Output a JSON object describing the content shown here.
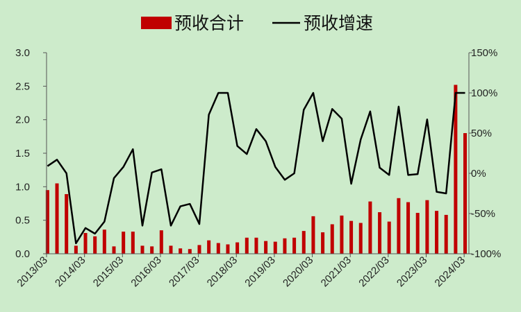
{
  "chart_data": {
    "type": "bar+line",
    "legend": {
      "placement": "top-center",
      "bar_label": "预收合计",
      "line_label": "预收增速"
    },
    "x_tick_labels": [
      "2013/03",
      "2014/03",
      "2015/03",
      "2016/03",
      "2017/03",
      "2018/03",
      "2019/03",
      "2020/03",
      "2021/03",
      "2022/03",
      "2023/03",
      "2024/03"
    ],
    "y_left": {
      "ylim": [
        0,
        3.0
      ],
      "tick_labels": [
        "0.0",
        "0.5",
        "1.0",
        "1.5",
        "2.0",
        "2.5",
        "3.0"
      ]
    },
    "y_right": {
      "ylim": [
        -100,
        150
      ],
      "tick_labels": [
        "-100%",
        "-50%",
        "0%",
        "50%",
        "100%",
        "150%"
      ]
    },
    "grid": false,
    "colors": {
      "bar": "#C00000",
      "line": "#000000",
      "background": "#CDEBCB"
    },
    "series": [
      {
        "name": "预收合计",
        "type": "bar",
        "axis": "left",
        "values": [
          0.95,
          1.05,
          0.89,
          0.12,
          0.31,
          0.26,
          0.36,
          0.11,
          0.33,
          0.33,
          0.12,
          0.11,
          0.35,
          0.12,
          0.08,
          0.07,
          0.13,
          0.2,
          0.16,
          0.14,
          0.17,
          0.24,
          0.24,
          0.19,
          0.18,
          0.23,
          0.24,
          0.34,
          0.56,
          0.32,
          0.44,
          0.57,
          0.49,
          0.46,
          0.78,
          0.62,
          0.48,
          0.83,
          0.77,
          0.61,
          0.8,
          0.64,
          0.58,
          2.52,
          1.8
        ]
      },
      {
        "name": "预收增速",
        "type": "line",
        "axis": "right",
        "unit": "%",
        "values": [
          9,
          17,
          0,
          -87,
          -68,
          -75,
          -60,
          -6,
          8,
          30,
          -65,
          1,
          5,
          -65,
          -41,
          -38,
          -63,
          73,
          100,
          100,
          34,
          24,
          55,
          40,
          8,
          -8,
          0,
          79,
          100,
          40,
          80,
          68,
          -13,
          42,
          77,
          7,
          -2,
          83,
          -2,
          -1,
          67,
          -23,
          -25,
          100,
          100
        ]
      }
    ]
  }
}
